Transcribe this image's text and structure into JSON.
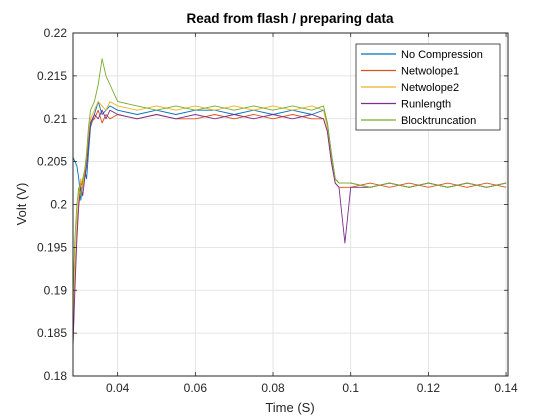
{
  "chart_data": {
    "type": "line",
    "title": "Read from flash / preparing data",
    "xlabel": "Time (S)",
    "ylabel": "Volt (V)",
    "xlim": [
      0.0285,
      0.1405
    ],
    "ylim": [
      0.18,
      0.22
    ],
    "xticks": [
      0.04,
      0.06,
      0.08,
      0.1,
      0.12,
      0.14
    ],
    "xtick_labels": [
      "0.04",
      "0.06",
      "0.08",
      "0.1",
      "0.12",
      "0.14"
    ],
    "yticks": [
      0.18,
      0.185,
      0.19,
      0.195,
      0.2,
      0.205,
      0.21,
      0.215,
      0.22
    ],
    "ytick_labels": [
      "0.18",
      "0.185",
      "0.19",
      "0.195",
      "0.2",
      "0.205",
      "0.21",
      "0.215",
      "0.22"
    ],
    "grid": true,
    "legend_position": "top-right",
    "series": [
      {
        "name": "No Compression",
        "color": "#0072BD",
        "x": [
          0.0285,
          0.029,
          0.0295,
          0.03,
          0.0305,
          0.031,
          0.0315,
          0.032,
          0.0325,
          0.033,
          0.034,
          0.035,
          0.036,
          0.037,
          0.038,
          0.04,
          0.045,
          0.05,
          0.055,
          0.06,
          0.065,
          0.07,
          0.075,
          0.08,
          0.085,
          0.09,
          0.093,
          0.094,
          0.095,
          0.096,
          0.097,
          0.1,
          0.105,
          0.11,
          0.115,
          0.12,
          0.125,
          0.13,
          0.135,
          0.14
        ],
        "y": [
          0.2055,
          0.205,
          0.2045,
          0.203,
          0.2005,
          0.2025,
          0.204,
          0.203,
          0.206,
          0.209,
          0.2105,
          0.212,
          0.2105,
          0.211,
          0.2115,
          0.211,
          0.2105,
          0.211,
          0.2105,
          0.211,
          0.211,
          0.2105,
          0.211,
          0.2105,
          0.211,
          0.2105,
          0.211,
          0.2095,
          0.206,
          0.203,
          0.2025,
          0.2025,
          0.202,
          0.2025,
          0.202,
          0.2025,
          0.202,
          0.2025,
          0.202,
          0.2025
        ]
      },
      {
        "name": "Netwolope1",
        "color": "#D95319",
        "x": [
          0.0285,
          0.029,
          0.0295,
          0.03,
          0.0305,
          0.031,
          0.0315,
          0.032,
          0.0325,
          0.033,
          0.034,
          0.035,
          0.036,
          0.037,
          0.038,
          0.04,
          0.045,
          0.05,
          0.055,
          0.06,
          0.065,
          0.07,
          0.075,
          0.08,
          0.085,
          0.09,
          0.093,
          0.094,
          0.095,
          0.096,
          0.097,
          0.1,
          0.105,
          0.11,
          0.115,
          0.12,
          0.125,
          0.13,
          0.135,
          0.14
        ],
        "y": [
          0.1835,
          0.192,
          0.197,
          0.2,
          0.2025,
          0.202,
          0.2035,
          0.205,
          0.2075,
          0.2095,
          0.21,
          0.211,
          0.2095,
          0.2105,
          0.21,
          0.2105,
          0.21,
          0.2105,
          0.21,
          0.21,
          0.2105,
          0.21,
          0.2105,
          0.21,
          0.2105,
          0.21,
          0.21,
          0.2085,
          0.205,
          0.2025,
          0.202,
          0.202,
          0.2025,
          0.202,
          0.2025,
          0.202,
          0.2025,
          0.202,
          0.2025,
          0.202
        ]
      },
      {
        "name": "Netwolope2",
        "color": "#EDB120",
        "x": [
          0.0285,
          0.029,
          0.0295,
          0.03,
          0.0305,
          0.031,
          0.0315,
          0.032,
          0.0325,
          0.033,
          0.034,
          0.035,
          0.036,
          0.037,
          0.038,
          0.04,
          0.045,
          0.05,
          0.055,
          0.06,
          0.065,
          0.07,
          0.075,
          0.08,
          0.085,
          0.09,
          0.093,
          0.094,
          0.095,
          0.096,
          0.097,
          0.1,
          0.105,
          0.11,
          0.115,
          0.12,
          0.125,
          0.13,
          0.135,
          0.14
        ],
        "y": [
          0.186,
          0.192,
          0.198,
          0.201,
          0.203,
          0.202,
          0.204,
          0.205,
          0.208,
          0.21,
          0.211,
          0.212,
          0.2115,
          0.211,
          0.212,
          0.2115,
          0.211,
          0.2115,
          0.211,
          0.2115,
          0.211,
          0.2115,
          0.211,
          0.2115,
          0.211,
          0.2115,
          0.211,
          0.209,
          0.2055,
          0.203,
          0.2025,
          0.2025,
          0.202,
          0.2025,
          0.202,
          0.2025,
          0.202,
          0.2025,
          0.202,
          0.2025
        ]
      },
      {
        "name": "Runlength",
        "color": "#7E2F8E",
        "x": [
          0.0285,
          0.029,
          0.0295,
          0.03,
          0.0305,
          0.031,
          0.0315,
          0.032,
          0.0325,
          0.033,
          0.034,
          0.035,
          0.036,
          0.037,
          0.038,
          0.04,
          0.045,
          0.05,
          0.055,
          0.06,
          0.065,
          0.07,
          0.075,
          0.08,
          0.085,
          0.09,
          0.093,
          0.094,
          0.095,
          0.096,
          0.097,
          0.0985,
          0.1,
          0.105,
          0.11,
          0.115,
          0.12,
          0.125,
          0.13,
          0.135,
          0.14
        ],
        "y": [
          0.1835,
          0.19,
          0.196,
          0.2,
          0.202,
          0.201,
          0.203,
          0.2045,
          0.207,
          0.2095,
          0.2105,
          0.21,
          0.211,
          0.21,
          0.211,
          0.2105,
          0.21,
          0.2105,
          0.21,
          0.2105,
          0.21,
          0.2105,
          0.21,
          0.2105,
          0.21,
          0.2105,
          0.21,
          0.2085,
          0.205,
          0.2025,
          0.202,
          0.1955,
          0.202,
          0.202,
          0.2025,
          0.202,
          0.2025,
          0.202,
          0.2025,
          0.202,
          0.2025
        ]
      },
      {
        "name": "Blocktruncation",
        "color": "#77AC30",
        "x": [
          0.0285,
          0.029,
          0.0295,
          0.03,
          0.0305,
          0.031,
          0.0315,
          0.032,
          0.0325,
          0.033,
          0.034,
          0.035,
          0.036,
          0.037,
          0.038,
          0.04,
          0.045,
          0.05,
          0.055,
          0.06,
          0.065,
          0.07,
          0.075,
          0.08,
          0.085,
          0.09,
          0.093,
          0.094,
          0.095,
          0.096,
          0.097,
          0.1,
          0.105,
          0.11,
          0.115,
          0.12,
          0.125,
          0.13,
          0.135,
          0.14
        ],
        "y": [
          0.189,
          0.196,
          0.2,
          0.202,
          0.201,
          0.203,
          0.204,
          0.206,
          0.209,
          0.211,
          0.212,
          0.214,
          0.217,
          0.215,
          0.214,
          0.212,
          0.2115,
          0.211,
          0.2115,
          0.211,
          0.2115,
          0.211,
          0.2115,
          0.211,
          0.2115,
          0.211,
          0.2115,
          0.2095,
          0.206,
          0.203,
          0.2025,
          0.2025,
          0.202,
          0.2025,
          0.202,
          0.2025,
          0.202,
          0.2025,
          0.202,
          0.2025
        ]
      }
    ]
  }
}
